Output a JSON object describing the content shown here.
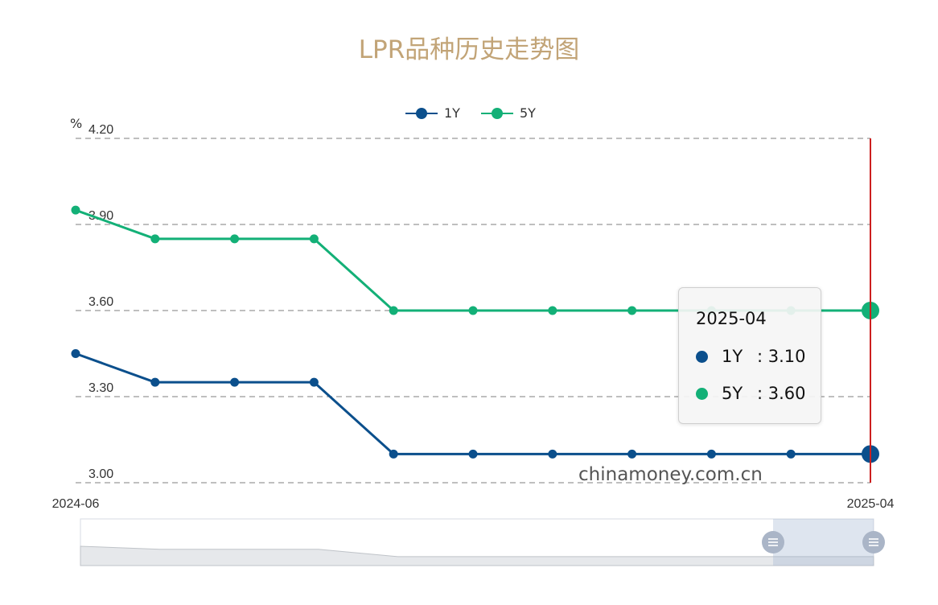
{
  "title": "LPR品种历史走势图",
  "unit": "%",
  "watermark": "chinamoney.com.cn",
  "colors": {
    "title": "#c2a477",
    "1Y": "#0b4f8c",
    "5Y": "#13b077",
    "crosshair": "#cc1f1f",
    "grid": "#999999"
  },
  "legend": [
    {
      "name": "1Y",
      "color": "#0b4f8c"
    },
    {
      "name": "5Y",
      "color": "#13b077"
    }
  ],
  "tooltip": {
    "title": "2025-04",
    "rows": [
      {
        "name": "1Y",
        "value": ": 3.10",
        "color": "#0b4f8c"
      },
      {
        "name": "5Y",
        "value": ": 3.60",
        "color": "#13b077"
      }
    ]
  },
  "chart_data": {
    "type": "line",
    "title": "LPR品种历史走势图",
    "ylabel": "%",
    "ylim": [
      3.0,
      4.2
    ],
    "yticks": [
      "3.00",
      "3.30",
      "3.60",
      "3.90",
      "4.20"
    ],
    "x": [
      "2024-06",
      "2024-07",
      "2024-08",
      "2024-09",
      "2024-10",
      "2024-11",
      "2024-12",
      "2025-01",
      "2025-02",
      "2025-03",
      "2025-04"
    ],
    "xtick_labels": [
      "2024-06",
      "2025-04"
    ],
    "series": [
      {
        "name": "1Y",
        "values": [
          3.45,
          3.35,
          3.35,
          3.35,
          3.1,
          3.1,
          3.1,
          3.1,
          3.1,
          3.1,
          3.1
        ]
      },
      {
        "name": "5Y",
        "values": [
          3.95,
          3.85,
          3.85,
          3.85,
          3.6,
          3.6,
          3.6,
          3.6,
          3.6,
          3.6,
          3.6
        ]
      }
    ],
    "highlight": "2025-04",
    "legend_position": "top-center",
    "grid": true
  }
}
